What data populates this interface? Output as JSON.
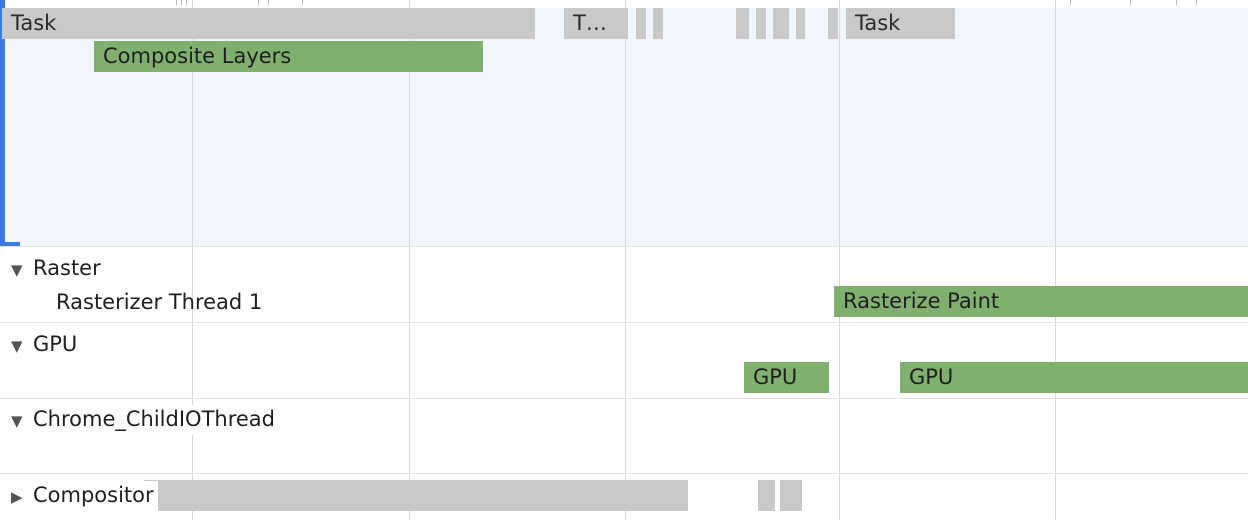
{
  "main_thread": {
    "events": {
      "task_1": "Task",
      "task_2": "T…",
      "task_3": "Task",
      "composite": "Composite Layers"
    }
  },
  "tracks": {
    "raster": {
      "label": "Raster",
      "expanded": true,
      "thread_label": "Rasterizer Thread 1",
      "event": "Rasterize Paint"
    },
    "gpu": {
      "label": "GPU",
      "expanded": true,
      "events": [
        "GPU",
        "GPU"
      ]
    },
    "io": {
      "label": "Chrome_ChildIOThread",
      "expanded": true
    },
    "compositor": {
      "label": "Compositor",
      "expanded": false
    }
  },
  "icons": {
    "expanded": "triangle-down-icon",
    "collapsed": "triangle-right-icon"
  },
  "colors": {
    "selection_accent": "#3b7ae0",
    "task_gray": "#c9c9c9",
    "paint_green": "#80b06e",
    "selected_track_bg": "#f1f6fd"
  }
}
